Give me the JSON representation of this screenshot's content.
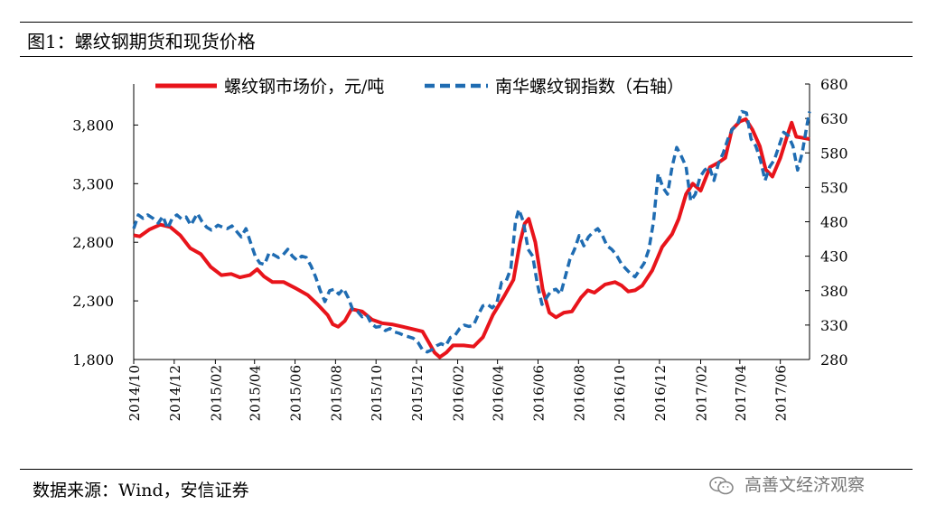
{
  "header": {
    "title": "图1：螺纹钢期货和现货价格"
  },
  "footer": {
    "source": "数据来源：Wind，安信证券",
    "watermark": "高善文经济观察"
  },
  "colors": {
    "spot": "#e8141b",
    "index": "#1f6cb2",
    "axis": "#000000"
  },
  "chart_data": {
    "type": "line",
    "title": "",
    "x_ticks": [
      "2014/10",
      "2014/12",
      "2015/02",
      "2015/04",
      "2015/06",
      "2015/08",
      "2015/10",
      "2015/12",
      "2016/02",
      "2016/04",
      "2016/06",
      "2016/08",
      "2016/10",
      "2016/12",
      "2017/02",
      "2017/04",
      "2017/06"
    ],
    "x_range": [
      "2014-10-01",
      "2017-07-15"
    ],
    "y_left": {
      "ticks": [
        "1,800",
        "2,300",
        "2,800",
        "3,300",
        "3,800"
      ],
      "lim": [
        1800,
        4150
      ]
    },
    "y_right": {
      "ticks": [
        "280",
        "330",
        "380",
        "430",
        "480",
        "530",
        "580",
        "630",
        "680"
      ],
      "lim": [
        280,
        680
      ]
    },
    "legend": {
      "position": "top",
      "items": [
        "螺纹钢市场价，元/吨",
        "南华螺纹钢指数（右轴）"
      ]
    },
    "series": [
      {
        "name": "螺纹钢市场价，元/吨",
        "axis": "left",
        "style": "solid",
        "points": [
          [
            "2014-10-01",
            2860
          ],
          [
            "2014-10-10",
            2850
          ],
          [
            "2014-10-25",
            2910
          ],
          [
            "2014-11-10",
            2950
          ],
          [
            "2014-11-25",
            2930
          ],
          [
            "2014-12-10",
            2860
          ],
          [
            "2014-12-25",
            2750
          ],
          [
            "2015-01-10",
            2700
          ],
          [
            "2015-01-25",
            2590
          ],
          [
            "2015-02-10",
            2520
          ],
          [
            "2015-02-25",
            2530
          ],
          [
            "2015-03-10",
            2500
          ],
          [
            "2015-03-25",
            2520
          ],
          [
            "2015-04-05",
            2570
          ],
          [
            "2015-04-15",
            2510
          ],
          [
            "2015-04-28",
            2460
          ],
          [
            "2015-05-15",
            2460
          ],
          [
            "2015-06-01",
            2410
          ],
          [
            "2015-06-20",
            2350
          ],
          [
            "2015-07-05",
            2270
          ],
          [
            "2015-07-20",
            2180
          ],
          [
            "2015-07-28",
            2100
          ],
          [
            "2015-08-05",
            2080
          ],
          [
            "2015-08-15",
            2130
          ],
          [
            "2015-08-25",
            2230
          ],
          [
            "2015-09-10",
            2210
          ],
          [
            "2015-09-25",
            2140
          ],
          [
            "2015-10-10",
            2110
          ],
          [
            "2015-10-25",
            2100
          ],
          [
            "2015-11-10",
            2080
          ],
          [
            "2015-11-25",
            2060
          ],
          [
            "2015-12-10",
            2040
          ],
          [
            "2015-12-20",
            1940
          ],
          [
            "2015-12-28",
            1860
          ],
          [
            "2016-01-05",
            1820
          ],
          [
            "2016-01-15",
            1860
          ],
          [
            "2016-01-25",
            1920
          ],
          [
            "2016-02-10",
            1920
          ],
          [
            "2016-02-25",
            1910
          ],
          [
            "2016-03-10",
            1990
          ],
          [
            "2016-03-25",
            2180
          ],
          [
            "2016-04-10",
            2330
          ],
          [
            "2016-04-25",
            2480
          ],
          [
            "2016-05-05",
            2800
          ],
          [
            "2016-05-12",
            2960
          ],
          [
            "2016-05-18",
            3000
          ],
          [
            "2016-05-28",
            2800
          ],
          [
            "2016-06-08",
            2400
          ],
          [
            "2016-06-18",
            2200
          ],
          [
            "2016-06-28",
            2160
          ],
          [
            "2016-07-10",
            2200
          ],
          [
            "2016-07-22",
            2210
          ],
          [
            "2016-08-05",
            2330
          ],
          [
            "2016-08-15",
            2390
          ],
          [
            "2016-08-25",
            2370
          ],
          [
            "2016-09-10",
            2440
          ],
          [
            "2016-09-25",
            2460
          ],
          [
            "2016-10-05",
            2430
          ],
          [
            "2016-10-15",
            2380
          ],
          [
            "2016-10-25",
            2390
          ],
          [
            "2016-11-05",
            2430
          ],
          [
            "2016-11-20",
            2560
          ],
          [
            "2016-12-05",
            2760
          ],
          [
            "2016-12-20",
            2870
          ],
          [
            "2016-12-30",
            3000
          ],
          [
            "2017-01-10",
            3210
          ],
          [
            "2017-01-20",
            3300
          ],
          [
            "2017-02-01",
            3240
          ],
          [
            "2017-02-15",
            3440
          ],
          [
            "2017-02-28",
            3480
          ],
          [
            "2017-03-10",
            3520
          ],
          [
            "2017-03-20",
            3760
          ],
          [
            "2017-04-01",
            3830
          ],
          [
            "2017-04-10",
            3850
          ],
          [
            "2017-04-20",
            3760
          ],
          [
            "2017-05-01",
            3620
          ],
          [
            "2017-05-10",
            3420
          ],
          [
            "2017-05-20",
            3360
          ],
          [
            "2017-06-01",
            3520
          ],
          [
            "2017-06-12",
            3720
          ],
          [
            "2017-06-18",
            3820
          ],
          [
            "2017-06-25",
            3700
          ],
          [
            "2017-07-05",
            3690
          ],
          [
            "2017-07-15",
            3680
          ]
        ]
      },
      {
        "name": "南华螺纹钢指数（右轴）",
        "axis": "right",
        "style": "dashed",
        "points": [
          [
            "2014-10-01",
            470
          ],
          [
            "2014-10-08",
            490
          ],
          [
            "2014-10-15",
            485
          ],
          [
            "2014-10-22",
            490
          ],
          [
            "2014-10-30",
            485
          ],
          [
            "2014-11-07",
            478
          ],
          [
            "2014-11-14",
            488
          ],
          [
            "2014-11-21",
            470
          ],
          [
            "2014-11-28",
            485
          ],
          [
            "2014-12-05",
            490
          ],
          [
            "2014-12-12",
            484
          ],
          [
            "2014-12-19",
            487
          ],
          [
            "2014-12-26",
            475
          ],
          [
            "2015-01-05",
            492
          ],
          [
            "2015-01-12",
            480
          ],
          [
            "2015-01-19",
            472
          ],
          [
            "2015-01-26",
            468
          ],
          [
            "2015-02-05",
            475
          ],
          [
            "2015-02-12",
            472
          ],
          [
            "2015-02-19",
            470
          ],
          [
            "2015-02-26",
            474
          ],
          [
            "2015-03-05",
            466
          ],
          [
            "2015-03-12",
            458
          ],
          [
            "2015-03-19",
            470
          ],
          [
            "2015-03-26",
            450
          ],
          [
            "2015-04-02",
            430
          ],
          [
            "2015-04-09",
            420
          ],
          [
            "2015-04-16",
            418
          ],
          [
            "2015-04-23",
            435
          ],
          [
            "2015-04-30",
            432
          ],
          [
            "2015-05-07",
            428
          ],
          [
            "2015-05-14",
            432
          ],
          [
            "2015-05-21",
            440
          ],
          [
            "2015-05-28",
            430
          ],
          [
            "2015-06-04",
            424
          ],
          [
            "2015-06-11",
            430
          ],
          [
            "2015-06-18",
            428
          ],
          [
            "2015-06-25",
            416
          ],
          [
            "2015-07-02",
            400
          ],
          [
            "2015-07-09",
            380
          ],
          [
            "2015-07-16",
            364
          ],
          [
            "2015-07-23",
            380
          ],
          [
            "2015-07-30",
            382
          ],
          [
            "2015-08-06",
            375
          ],
          [
            "2015-08-13",
            383
          ],
          [
            "2015-08-20",
            370
          ],
          [
            "2015-08-27",
            352
          ],
          [
            "2015-09-03",
            350
          ],
          [
            "2015-09-10",
            342
          ],
          [
            "2015-09-17",
            345
          ],
          [
            "2015-09-24",
            332
          ],
          [
            "2015-10-01",
            327
          ],
          [
            "2015-10-08",
            328
          ],
          [
            "2015-10-15",
            322
          ],
          [
            "2015-10-22",
            325
          ],
          [
            "2015-10-29",
            320
          ],
          [
            "2015-11-05",
            318
          ],
          [
            "2015-11-12",
            315
          ],
          [
            "2015-11-19",
            313
          ],
          [
            "2015-11-26",
            311
          ],
          [
            "2015-12-03",
            305
          ],
          [
            "2015-12-10",
            294
          ],
          [
            "2015-12-17",
            291
          ],
          [
            "2015-12-24",
            294
          ],
          [
            "2015-12-31",
            300
          ],
          [
            "2016-01-07",
            303
          ],
          [
            "2016-01-14",
            300
          ],
          [
            "2016-01-21",
            312
          ],
          [
            "2016-01-28",
            315
          ],
          [
            "2016-02-04",
            325
          ],
          [
            "2016-02-11",
            330
          ],
          [
            "2016-02-18",
            328
          ],
          [
            "2016-02-25",
            330
          ],
          [
            "2016-03-03",
            345
          ],
          [
            "2016-03-10",
            358
          ],
          [
            "2016-03-17",
            360
          ],
          [
            "2016-03-24",
            355
          ],
          [
            "2016-03-31",
            362
          ],
          [
            "2016-04-07",
            392
          ],
          [
            "2016-04-14",
            394
          ],
          [
            "2016-04-21",
            412
          ],
          [
            "2016-04-28",
            480
          ],
          [
            "2016-05-03",
            498
          ],
          [
            "2016-05-10",
            480
          ],
          [
            "2016-05-17",
            440
          ],
          [
            "2016-05-24",
            430
          ],
          [
            "2016-05-31",
            390
          ],
          [
            "2016-06-07",
            360
          ],
          [
            "2016-06-14",
            370
          ],
          [
            "2016-06-21",
            380
          ],
          [
            "2016-06-28",
            382
          ],
          [
            "2016-07-05",
            375
          ],
          [
            "2016-07-12",
            400
          ],
          [
            "2016-07-19",
            425
          ],
          [
            "2016-07-26",
            440
          ],
          [
            "2016-08-02",
            460
          ],
          [
            "2016-08-09",
            445
          ],
          [
            "2016-08-16",
            458
          ],
          [
            "2016-08-23",
            465
          ],
          [
            "2016-08-30",
            470
          ],
          [
            "2016-09-06",
            460
          ],
          [
            "2016-09-13",
            445
          ],
          [
            "2016-09-20",
            440
          ],
          [
            "2016-09-27",
            432
          ],
          [
            "2016-10-04",
            420
          ],
          [
            "2016-10-11",
            412
          ],
          [
            "2016-10-18",
            405
          ],
          [
            "2016-10-25",
            400
          ],
          [
            "2016-11-01",
            410
          ],
          [
            "2016-11-08",
            420
          ],
          [
            "2016-11-15",
            440
          ],
          [
            "2016-11-22",
            480
          ],
          [
            "2016-11-29",
            550
          ],
          [
            "2016-12-06",
            530
          ],
          [
            "2016-12-13",
            520
          ],
          [
            "2016-12-20",
            560
          ],
          [
            "2016-12-27",
            588
          ],
          [
            "2017-01-03",
            575
          ],
          [
            "2017-01-10",
            560
          ],
          [
            "2017-01-17",
            510
          ],
          [
            "2017-01-24",
            520
          ],
          [
            "2017-01-31",
            545
          ],
          [
            "2017-02-07",
            555
          ],
          [
            "2017-02-14",
            560
          ],
          [
            "2017-02-21",
            540
          ],
          [
            "2017-02-28",
            565
          ],
          [
            "2017-03-07",
            580
          ],
          [
            "2017-03-14",
            600
          ],
          [
            "2017-03-21",
            615
          ],
          [
            "2017-03-28",
            620
          ],
          [
            "2017-04-04",
            640
          ],
          [
            "2017-04-11",
            638
          ],
          [
            "2017-04-18",
            600
          ],
          [
            "2017-04-25",
            590
          ],
          [
            "2017-05-02",
            570
          ],
          [
            "2017-05-09",
            540
          ],
          [
            "2017-05-16",
            560
          ],
          [
            "2017-05-23",
            570
          ],
          [
            "2017-05-30",
            590
          ],
          [
            "2017-06-06",
            610
          ],
          [
            "2017-06-13",
            605
          ],
          [
            "2017-06-20",
            590
          ],
          [
            "2017-06-27",
            555
          ],
          [
            "2017-07-04",
            580
          ],
          [
            "2017-07-11",
            620
          ],
          [
            "2017-07-15",
            640
          ]
        ]
      }
    ]
  }
}
